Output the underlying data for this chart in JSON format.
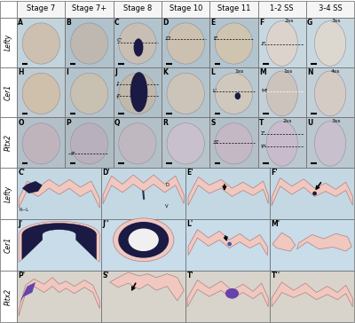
{
  "col_headers": [
    "Stage 7",
    "Stage 7+",
    "Stage 8",
    "Stage 10",
    "Stage 11",
    "1-2 SS",
    "3-4 SS"
  ],
  "row_labels_top": [
    "Lefty",
    "Cer1",
    "Pitx2"
  ],
  "row_labels_bottom": [
    "Lefty",
    "Cer1",
    "Pitx2"
  ],
  "top_panel_labels": [
    [
      "A",
      "B",
      "C",
      "D",
      "E",
      "F",
      "G"
    ],
    [
      "H",
      "I",
      "J",
      "K",
      "L",
      "M",
      "N"
    ],
    [
      "O",
      "P",
      "Q",
      "R",
      "S",
      "T",
      "U"
    ]
  ],
  "bot_panel_labels": [
    [
      "C'",
      "D'",
      "E'",
      "F'"
    ],
    [
      "J'",
      "J''",
      "L'",
      "M'"
    ],
    [
      "P'",
      "S'",
      "T'",
      "T''"
    ]
  ],
  "header_bg": "#f5f5f5",
  "panel_bg_embryo": "#c8d8e4",
  "panel_bg_section_blue": "#cce0ea",
  "panel_bg_section_white": "#e8e0d8",
  "embryo_fill_beige": "#d8c8b8",
  "embryo_fill_grey": "#c0b8b0",
  "embryo_fill_purple": "#b8a8c0",
  "embryo_fill_light": "#dcd4cc",
  "section_pink": "#e8b8b0",
  "section_pink_light": "#f0c8c0",
  "section_pink_medium": "#e0a898",
  "dark_blue_stain": "#1a1a44",
  "purple_stain": "#6644aa",
  "label_fs": 5.5,
  "header_fs": 6.0,
  "sublabel_fs": 4.5
}
